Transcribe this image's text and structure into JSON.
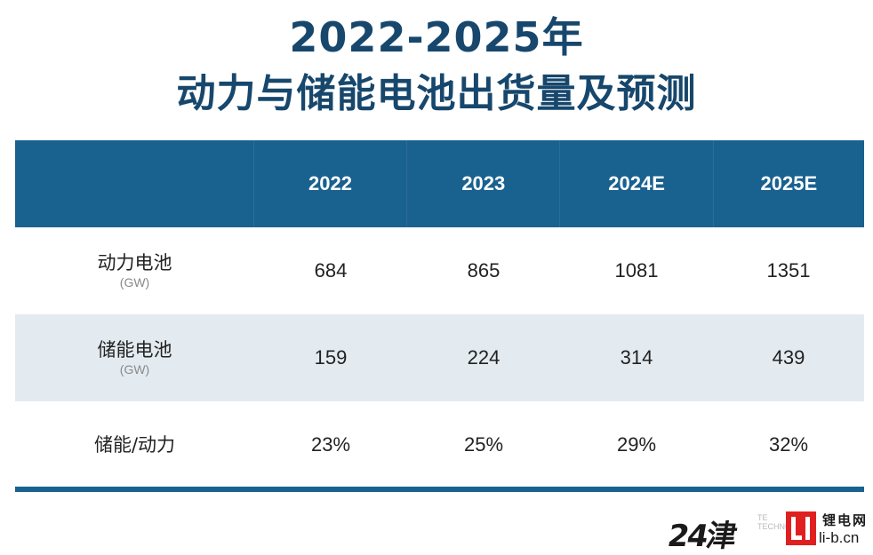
{
  "title": {
    "line1": "2022-2025年",
    "line2": "动力与储能电池出货量及预测"
  },
  "table": {
    "headers": [
      "",
      "2022",
      "2023",
      "2024E",
      "2025E"
    ],
    "rows": [
      {
        "label": "动力电池",
        "unit": "(GW)",
        "values": [
          "684",
          "865",
          "1081",
          "1351"
        ]
      },
      {
        "label": "储能电池",
        "unit": "(GW)",
        "values": [
          "159",
          "224",
          "314",
          "439"
        ]
      },
      {
        "label": "储能/动力",
        "unit": "",
        "values": [
          "23%",
          "25%",
          "29%",
          "32%"
        ]
      }
    ]
  },
  "watermark": {
    "number": "24津",
    "faint_text": [
      "TE",
      "TECHNOLOGY"
    ],
    "logo_text": "Li",
    "site_name": "锂电网",
    "url": "li-b.cn"
  },
  "colors": {
    "title": "#17476c",
    "header_bg": "#19618f",
    "alt_row_bg": "#e3ebf0",
    "logo_red": "#e02020"
  }
}
